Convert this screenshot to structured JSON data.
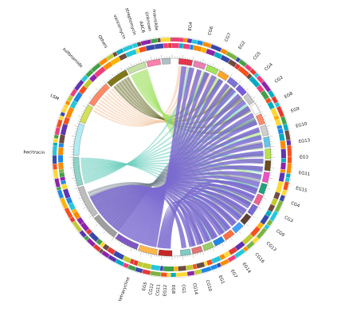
{
  "labels": {
    "left": [
      {
        "id": "bacitracin",
        "text": "bacitracin"
      },
      {
        "id": "lsm",
        "text": "LSM"
      },
      {
        "id": "sulfonamide",
        "text": "sulfonamide"
      },
      {
        "id": "others",
        "text": "Others"
      },
      {
        "id": "vancomycin",
        "text": "vancomycin"
      },
      {
        "id": "streptomycin",
        "text": "streptomycin"
      },
      {
        "id": "aac6",
        "text": "AAC6"
      },
      {
        "id": "unknown",
        "text": "Unknown"
      },
      {
        "id": "macrolide",
        "text": "macrolide"
      },
      {
        "id": "tetracycline",
        "text": "tetracycline"
      }
    ],
    "right": [
      {
        "id": "eg4",
        "text": "EG4"
      },
      {
        "id": "cg6",
        "text": "CG6"
      },
      {
        "id": "cg7",
        "text": "CG7"
      },
      {
        "id": "eg2",
        "text": "EG2"
      },
      {
        "id": "cg5",
        "text": "CG5"
      },
      {
        "id": "cg4",
        "text": "CG4"
      },
      {
        "id": "cg2",
        "text": "CG2"
      },
      {
        "id": "eg8",
        "text": "EG8"
      },
      {
        "id": "eg9",
        "text": "EG9"
      },
      {
        "id": "eg10",
        "text": "EG10"
      },
      {
        "id": "eg13",
        "text": "EG13"
      },
      {
        "id": "eg3",
        "text": "EG3"
      },
      {
        "id": "eg11",
        "text": "EG11"
      },
      {
        "id": "eg15",
        "text": "EG15"
      },
      {
        "id": "cg4b",
        "text": "CG4"
      },
      {
        "id": "cg3",
        "text": "CG3"
      },
      {
        "id": "cg9",
        "text": "CG9"
      },
      {
        "id": "cg13",
        "text": "CG13"
      },
      {
        "id": "cg16",
        "text": "CG16"
      },
      {
        "id": "eg14",
        "text": "EG14"
      },
      {
        "id": "eg7",
        "text": "EG7"
      },
      {
        "id": "eg1",
        "text": "EG1"
      },
      {
        "id": "cg10",
        "text": "CG10"
      },
      {
        "id": "cg14",
        "text": "CG14"
      },
      {
        "id": "cg1",
        "text": "CG1"
      },
      {
        "id": "eg8b",
        "text": "EG8"
      },
      {
        "id": "eg12",
        "text": "EG12"
      },
      {
        "id": "cg11",
        "text": "CG11"
      },
      {
        "id": "cg12",
        "text": "CG12"
      },
      {
        "id": "eg5",
        "text": "EG5"
      }
    ]
  },
  "colors": {
    "ribbon_main": "#7b6ad0",
    "ribbon_secondary": "#76838f",
    "ribbon_teal": "#6fcfc0",
    "ribbon_green": "#a6e36b",
    "ribbon_peach": "#f2c9a6",
    "ribbon_olive": "#6b6e2c"
  }
}
